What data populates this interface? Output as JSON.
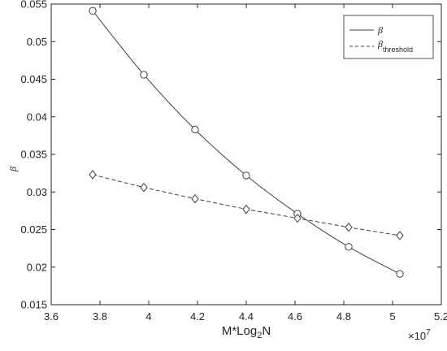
{
  "chart_data": {
    "type": "line",
    "xlabel": "M*Log",
    "xlabel_sub": "2",
    "xlabel_suffix": "N",
    "ylabel": "β",
    "x_multiplier_base": "×10",
    "x_multiplier_exp": "7",
    "xlim": [
      3.6,
      5.2
    ],
    "ylim": [
      0.015,
      0.055
    ],
    "xticks": [
      "3.6",
      "3.8",
      "4",
      "4.2",
      "4.4",
      "4.6",
      "4.8",
      "5",
      "5.2"
    ],
    "yticks": [
      "0.015",
      "0.02",
      "0.025",
      "0.03",
      "0.035",
      "0.04",
      "0.045",
      "0.05",
      "0.055"
    ],
    "grid": false,
    "legend_position": "top-right",
    "series": [
      {
        "name": "β",
        "line_style": "solid",
        "marker": "circle",
        "color": "#404040",
        "x": [
          3.77,
          3.98,
          4.19,
          4.4,
          4.61,
          4.82,
          5.03
        ],
        "y": [
          0.0541,
          0.0456,
          0.0383,
          0.0322,
          0.0271,
          0.0227,
          0.0191
        ]
      },
      {
        "name": "β",
        "name_sub": "threshold",
        "line_style": "dashed",
        "marker": "diamond",
        "color": "#404040",
        "x": [
          3.77,
          3.98,
          4.19,
          4.4,
          4.61,
          4.82,
          5.03
        ],
        "y": [
          0.0323,
          0.0306,
          0.0291,
          0.0277,
          0.0265,
          0.0253,
          0.0242
        ]
      }
    ]
  }
}
